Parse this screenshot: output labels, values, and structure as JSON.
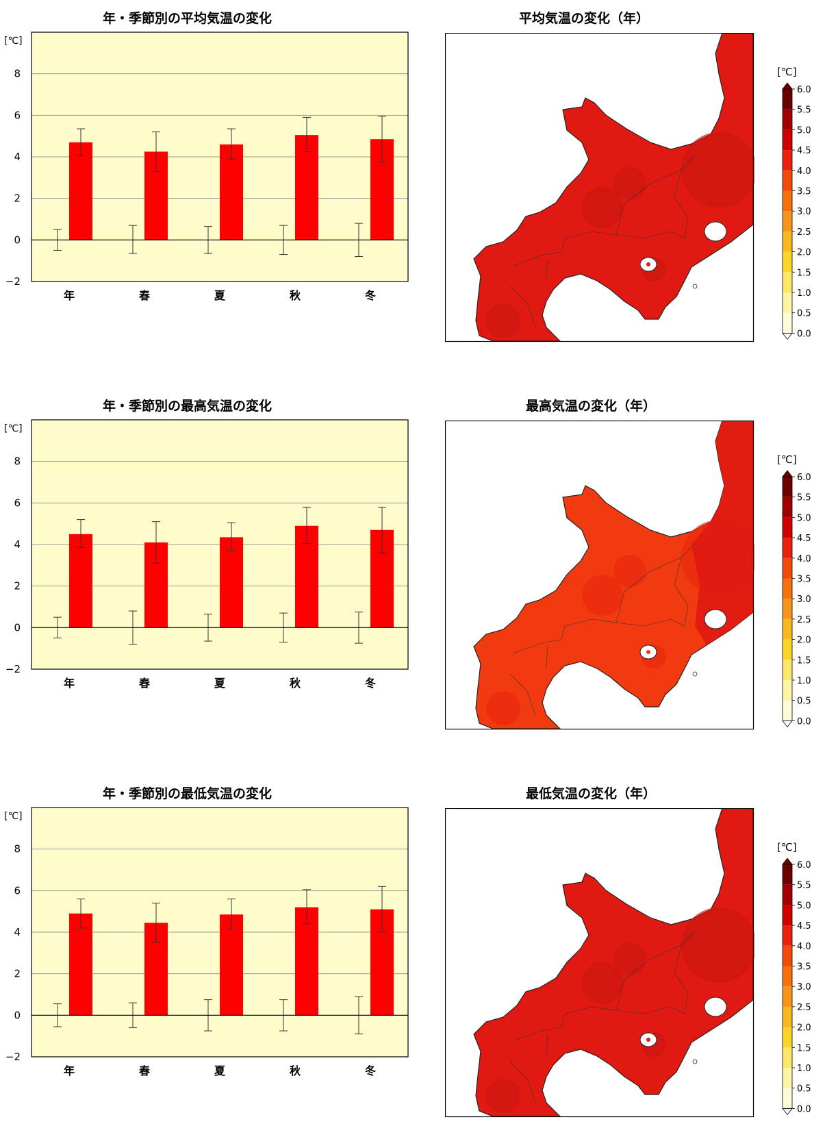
{
  "colors": {
    "panel": "#fffccc",
    "bar": "#ff0000",
    "map_red": "#e01a12",
    "map_orange": "#f23a10"
  },
  "unit": "[℃]",
  "chart_data": [
    {
      "type": "bar",
      "title": "年・季節別の平均気温の変化",
      "categories": [
        "年",
        "春",
        "夏",
        "秋",
        "冬"
      ],
      "ylabel": "[℃]",
      "ylim": [
        -2,
        10
      ],
      "yticks": [
        "−2",
        "0",
        "2",
        "4",
        "6",
        "8"
      ],
      "grid": true,
      "series": [
        {
          "values": [
            4.7,
            4.25,
            4.6,
            5.05,
            4.85
          ],
          "err_low": [
            4.05,
            3.3,
            3.9,
            4.25,
            3.75
          ],
          "err_high": [
            5.35,
            5.2,
            5.35,
            5.9,
            5.95
          ]
        }
      ],
      "reference": {
        "low": [
          -0.5,
          -0.65,
          -0.65,
          -0.7,
          -0.8
        ],
        "high": [
          0.5,
          0.7,
          0.65,
          0.7,
          0.8
        ]
      }
    },
    {
      "type": "bar",
      "title": "年・季節別の最高気温の変化",
      "categories": [
        "年",
        "春",
        "夏",
        "秋",
        "冬"
      ],
      "ylabel": "[℃]",
      "ylim": [
        -2,
        10
      ],
      "yticks": [
        "−2",
        "0",
        "2",
        "4",
        "6",
        "8"
      ],
      "grid": true,
      "series": [
        {
          "values": [
            4.5,
            4.1,
            4.35,
            4.9,
            4.7
          ],
          "err_low": [
            3.85,
            3.1,
            3.7,
            4.05,
            3.6
          ],
          "err_high": [
            5.2,
            5.1,
            5.05,
            5.8,
            5.8
          ]
        }
      ],
      "reference": {
        "low": [
          -0.5,
          -0.8,
          -0.65,
          -0.7,
          -0.75
        ],
        "high": [
          0.5,
          0.8,
          0.65,
          0.7,
          0.75
        ]
      }
    },
    {
      "type": "bar",
      "title": "年・季節別の最低気温の変化",
      "categories": [
        "年",
        "春",
        "夏",
        "秋",
        "冬"
      ],
      "ylabel": "[℃]",
      "ylim": [
        -2,
        10
      ],
      "yticks": [
        "−2",
        "0",
        "2",
        "4",
        "6",
        "8"
      ],
      "grid": true,
      "series": [
        {
          "values": [
            4.9,
            4.45,
            4.85,
            5.2,
            5.1
          ],
          "err_low": [
            4.2,
            3.5,
            4.15,
            4.4,
            4.0
          ],
          "err_high": [
            5.6,
            5.4,
            5.6,
            6.05,
            6.2
          ]
        }
      ],
      "reference": {
        "low": [
          -0.55,
          -0.6,
          -0.75,
          -0.75,
          -0.9
        ],
        "high": [
          0.55,
          0.6,
          0.75,
          0.75,
          0.9
        ]
      }
    }
  ],
  "maps": [
    {
      "title": "平均気温の変化（年）"
    },
    {
      "title": "最高気温の変化（年）"
    },
    {
      "title": "最低気温の変化（年）"
    }
  ],
  "colorbar": {
    "ticks": [
      "6.0",
      "5.5",
      "5.0",
      "4.5",
      "4.0",
      "3.5",
      "3.0",
      "2.5",
      "2.0",
      "1.5",
      "1.0",
      "0.5",
      "0.0"
    ],
    "colors": [
      "#6a0000",
      "#a00000",
      "#cc0000",
      "#e8200e",
      "#f04a0c",
      "#f5700e",
      "#f7941e",
      "#f8b820",
      "#fad428",
      "#fbe86a",
      "#fdf4a6",
      "#fffbd8"
    ]
  }
}
